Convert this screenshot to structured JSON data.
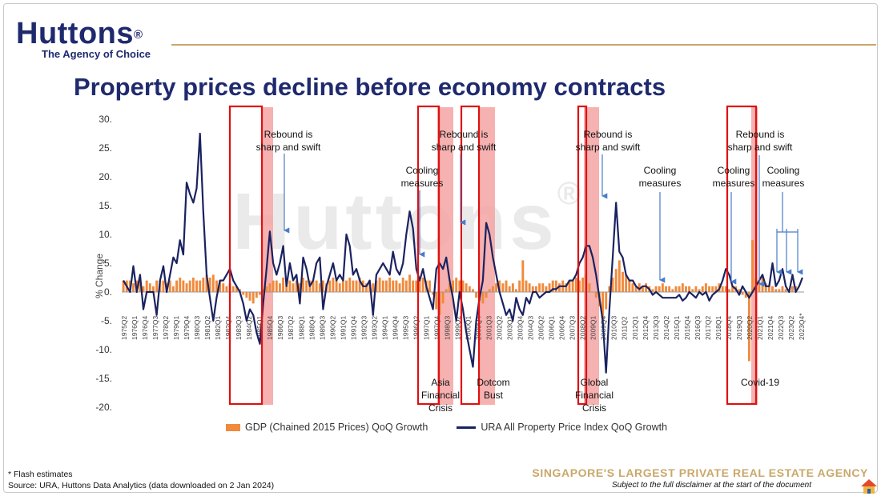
{
  "brand": {
    "name": "Huttons",
    "reg": "®",
    "tagline": "The Agency of Choice"
  },
  "title": "Property prices decline before economy contracts",
  "watermark": {
    "text": "Huttons",
    "reg": "®"
  },
  "footer": {
    "note": "* Flash estimates",
    "source": "Source: URA, Huttons Data Analytics (data downloaded on 2 Jan 2024)",
    "agency_tagline": "SINGAPORE'S LARGEST PRIVATE REAL ESTATE AGENCY",
    "disclaimer": "Subject to the full disclaimer at the start of the document"
  },
  "colors": {
    "gdp": "#f08a3c",
    "price": "#1a2260",
    "title": "#1f2a6e",
    "recession": "#f4a3a3",
    "box": "#e01010",
    "arrow": "#4a7cc9"
  },
  "chart_data": {
    "type": "bar",
    "ylabel": "% Change",
    "ylim": [
      -20,
      30
    ],
    "yticks": [
      "30.",
      "25.",
      "20.",
      "15.",
      "10.",
      "5.",
      "0.",
      "-5.",
      "-10.",
      "-15.",
      "-20."
    ],
    "x_start": "1975Q2",
    "x_end": "2023Q4",
    "xtick_labels": [
      "1975Q2",
      "1976Q1",
      "1976Q4",
      "1977Q3",
      "1978Q2",
      "1979Q1",
      "1979Q4",
      "1980Q3",
      "1981Q2",
      "1982Q1",
      "1982Q4",
      "1983Q3",
      "1984Q2",
      "1985Q1",
      "1985Q4",
      "1986Q3",
      "1987Q2",
      "1988Q1",
      "1988Q4",
      "1989Q3",
      "1990Q2",
      "1991Q1",
      "1991Q4",
      "1992Q3",
      "1993Q2",
      "1994Q1",
      "1994Q4",
      "1995Q3",
      "1996Q2",
      "1997Q1",
      "1997Q4",
      "1998Q3",
      "1999Q2",
      "2000Q1",
      "2000Q4",
      "2001Q3",
      "2002Q2",
      "2003Q1",
      "2003Q4",
      "2004Q3",
      "2005Q2",
      "2006Q1",
      "2006Q4",
      "2007Q3",
      "2008Q2",
      "2009Q1",
      "2009Q4",
      "2010Q3",
      "2011Q2",
      "2012Q1",
      "2012Q4",
      "2013Q3",
      "2014Q2",
      "2015Q1",
      "2015Q4",
      "2016Q3",
      "2017Q2",
      "2018Q1",
      "2018Q4",
      "2019Q3",
      "2020Q2",
      "2021Q1",
      "2021Q4",
      "2022Q3",
      "2023Q2",
      "2023Q4*"
    ],
    "series": [
      {
        "name": "GDP (Chained 2015 Prices) QoQ Growth",
        "kind": "bar",
        "values": [
          2,
          2,
          2,
          1.5,
          2,
          2,
          1,
          2,
          1.5,
          1,
          2,
          2,
          2,
          1.5,
          2,
          1,
          2,
          2.5,
          2,
          1.5,
          2,
          2.5,
          2,
          2,
          2.5,
          3,
          2.5,
          3,
          2,
          2,
          1.5,
          1,
          1.5,
          1,
          1,
          0.5,
          -0.5,
          -1,
          -1.5,
          -2,
          -1,
          -0.5,
          0.5,
          1,
          1.5,
          2,
          2,
          1.5,
          2.5,
          2,
          2,
          1.5,
          2,
          1.5,
          2.5,
          2,
          2,
          2,
          2,
          1.5,
          2,
          1.5,
          2,
          2.5,
          2,
          1.5,
          2,
          2,
          2.5,
          2,
          2,
          2.5,
          2,
          1.5,
          2,
          1.5,
          2,
          2.5,
          2,
          2,
          2.5,
          2,
          2,
          1.5,
          2.5,
          2,
          3,
          2,
          2,
          2.5,
          2.5,
          2,
          2,
          -0.5,
          -3,
          -4,
          -2,
          0.5,
          1.5,
          2,
          2.5,
          2,
          2,
          1.5,
          1,
          0.5,
          -1,
          -1.5,
          -2,
          -1,
          0.5,
          1,
          1.5,
          2,
          1.5,
          2,
          1,
          1.5,
          0.5,
          2,
          5.5,
          2,
          1.5,
          1,
          1,
          1.5,
          1.5,
          1,
          1.5,
          2,
          2,
          1.5,
          2,
          1.5,
          2,
          2,
          2.5,
          2,
          2.5,
          3,
          1.5,
          0,
          -1,
          -2.5,
          -5,
          -3,
          1,
          2.5,
          4,
          5.5,
          3.5,
          3,
          2,
          1.5,
          1,
          1.5,
          1,
          1.5,
          1,
          0.5,
          1,
          1,
          1.5,
          1,
          1,
          0.5,
          1,
          1,
          1.5,
          1,
          1,
          0.5,
          1,
          0.5,
          1,
          1.5,
          1,
          1,
          1,
          1.5,
          1,
          1,
          0.5,
          1,
          1,
          0.5,
          -0.5,
          -1,
          -12,
          9,
          2.5,
          2,
          3,
          1.5,
          1,
          1,
          0.5,
          0.5,
          1,
          0.5,
          0.5,
          1,
          1
        ]
      },
      {
        "name": "URA All Property Price Index QoQ Growth",
        "kind": "line",
        "values": [
          2,
          1,
          0,
          4.5,
          0,
          3,
          -3,
          0,
          0,
          0,
          -4,
          2,
          4.5,
          0,
          3,
          6,
          5,
          9,
          6.5,
          19,
          17,
          15.5,
          18,
          27.5,
          14,
          3,
          -1,
          -5,
          -1,
          2,
          2,
          3,
          4,
          2,
          1,
          0,
          -2,
          -5,
          -3,
          -4,
          -7,
          -9,
          -2,
          4,
          10.5,
          5,
          3,
          5,
          8,
          1,
          5,
          2,
          3,
          -2,
          6,
          4,
          1,
          2,
          5,
          6,
          -3,
          1,
          3,
          5,
          2,
          3,
          2,
          10,
          8,
          3,
          4,
          2,
          1,
          1,
          2,
          -4,
          3,
          4,
          5,
          4,
          3,
          7,
          4,
          3,
          5,
          10,
          14,
          11,
          4,
          2,
          4,
          1,
          -1,
          -3,
          4,
          5,
          4,
          6,
          2,
          -1,
          -5,
          0,
          -3,
          -7,
          -10,
          -13,
          -5,
          -1,
          2,
          12,
          10,
          6,
          3,
          0,
          -2,
          -4,
          -3,
          -5,
          -1,
          -3,
          -4,
          -1,
          -2,
          0,
          0,
          -1,
          -0.5,
          0,
          0,
          0.5,
          0.5,
          1,
          1,
          1,
          2,
          2,
          3,
          5,
          6,
          8,
          8,
          6,
          3,
          -1,
          -5,
          -14,
          -3,
          6,
          15.5,
          7,
          6,
          3,
          2,
          2,
          1,
          0.5,
          1,
          1,
          0.5,
          -0.5,
          0,
          -0.5,
          -1,
          -1,
          -1,
          -1,
          -1,
          -0.5,
          -1.5,
          -1,
          0,
          -0.5,
          -1,
          0,
          -0.5,
          0,
          -1.5,
          -0.5,
          0,
          0.5,
          2,
          4,
          3,
          1,
          0.5,
          -0.5,
          1,
          0,
          -1,
          0,
          1,
          2,
          3,
          1,
          1,
          5,
          1,
          2,
          4,
          1,
          0,
          3,
          0,
          1,
          2.5
        ]
      }
    ],
    "annotations": [
      {
        "lines": [
          "Rebound is",
          "sharp and swift"
        ]
      },
      {
        "lines": [
          "Cooling",
          "measures"
        ]
      },
      {
        "lines": [
          "Rebound is",
          "sharp and swift"
        ]
      },
      {
        "lines": [
          "Rebound is",
          "sharp and swift"
        ]
      },
      {
        "lines": [
          "Cooling",
          "measures"
        ]
      },
      {
        "lines": [
          "Cooling",
          "measures"
        ]
      },
      {
        "lines": [
          "Rebound is",
          "sharp and swift"
        ]
      },
      {
        "lines": [
          "Cooling",
          "measures"
        ]
      },
      {
        "lines": [
          "Asia",
          "Financial",
          "Crisis"
        ]
      },
      {
        "lines": [
          "Dotcom",
          "Bust"
        ]
      },
      {
        "lines": [
          "Global",
          "Financial",
          "Crisis"
        ]
      },
      {
        "lines": [
          "Covid-19"
        ]
      }
    ],
    "grid": false
  }
}
